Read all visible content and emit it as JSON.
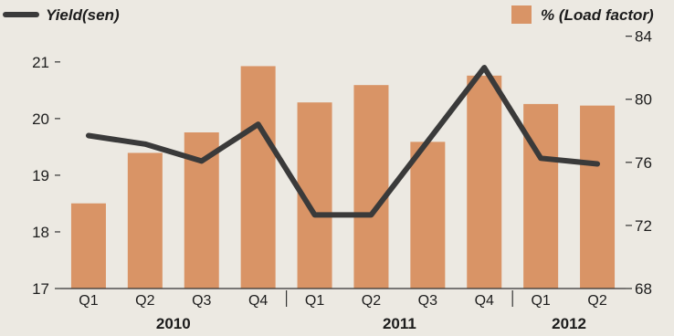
{
  "chart_data": {
    "type": "bar+line",
    "categories": [
      "Q1",
      "Q2",
      "Q3",
      "Q4",
      "Q1",
      "Q2",
      "Q3",
      "Q4",
      "Q1",
      "Q2"
    ],
    "years": [
      {
        "label": "2010",
        "from": 0,
        "to": 3
      },
      {
        "label": "2011",
        "from": 4,
        "to": 7
      },
      {
        "label": "2012",
        "from": 8,
        "to": 9
      }
    ],
    "series": [
      {
        "name": "% (Load factor)",
        "type": "bar",
        "axis": "right",
        "color": "#d99466",
        "values": [
          73.4,
          76.6,
          77.9,
          82.1,
          79.8,
          80.9,
          77.3,
          81.5,
          79.7,
          79.6
        ]
      },
      {
        "name": "Yield(sen)",
        "type": "line",
        "axis": "left",
        "color": "#3a3a3a",
        "values": [
          19.7,
          19.55,
          19.25,
          19.9,
          18.3,
          18.3,
          19.6,
          20.9,
          19.3,
          19.2
        ]
      }
    ],
    "y_left": {
      "label": "Yield(sen)",
      "min": 17,
      "max": 21.9,
      "ticks": [
        17,
        18,
        19,
        20,
        21
      ]
    },
    "y_right": {
      "label": "% (Load factor)",
      "min": 68,
      "max": 85.6,
      "ticks": [
        68,
        72,
        76,
        80,
        84
      ]
    },
    "legend": {
      "position": "top"
    },
    "grid": false
  }
}
